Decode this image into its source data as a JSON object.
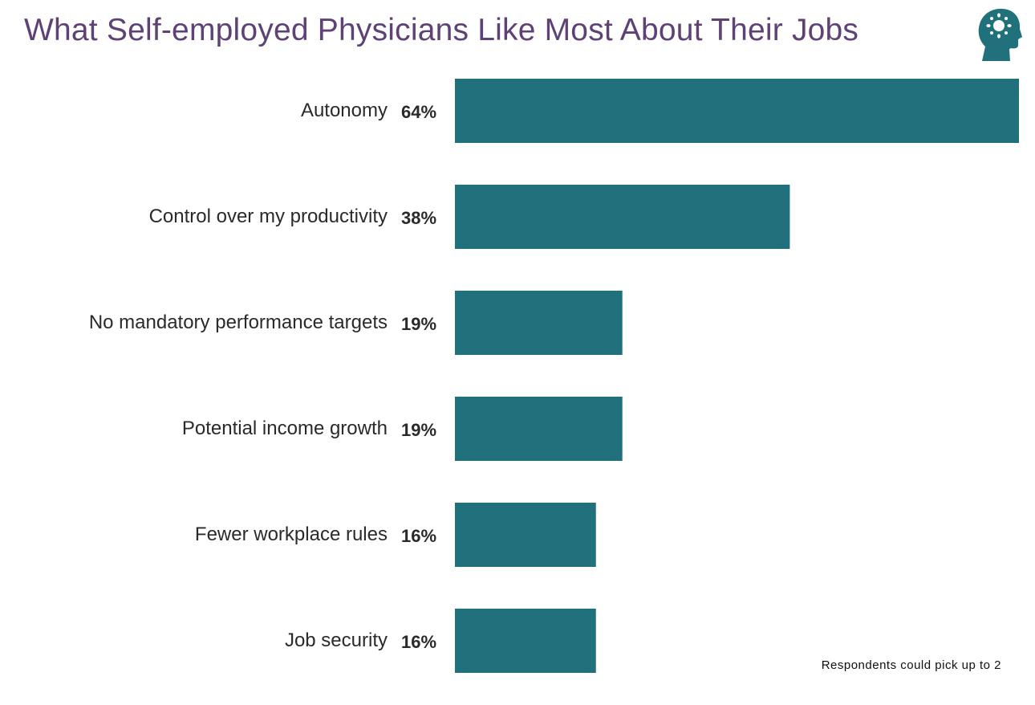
{
  "chart_data": {
    "type": "bar",
    "orientation": "horizontal",
    "title": "What Self-employed Physicians Like Most About Their Jobs",
    "categories": [
      "Autonomy",
      "Control over my productivity",
      "No mandatory performance targets",
      "Potential income growth",
      "Fewer workplace rules",
      "Job security"
    ],
    "values": [
      64,
      38,
      19,
      19,
      16,
      16
    ],
    "value_labels": [
      "64%",
      "38%",
      "19%",
      "19%",
      "16%",
      "16%"
    ],
    "unit": "%",
    "xlim": [
      0,
      64
    ],
    "grid": false,
    "axes_visible": false,
    "bar_color": "#20717c",
    "title_color": "#5e4275",
    "note": "Respondents could pick up to 2"
  },
  "logo": {
    "icon": "head-with-lightbulb-icon",
    "color": "#20717c"
  }
}
